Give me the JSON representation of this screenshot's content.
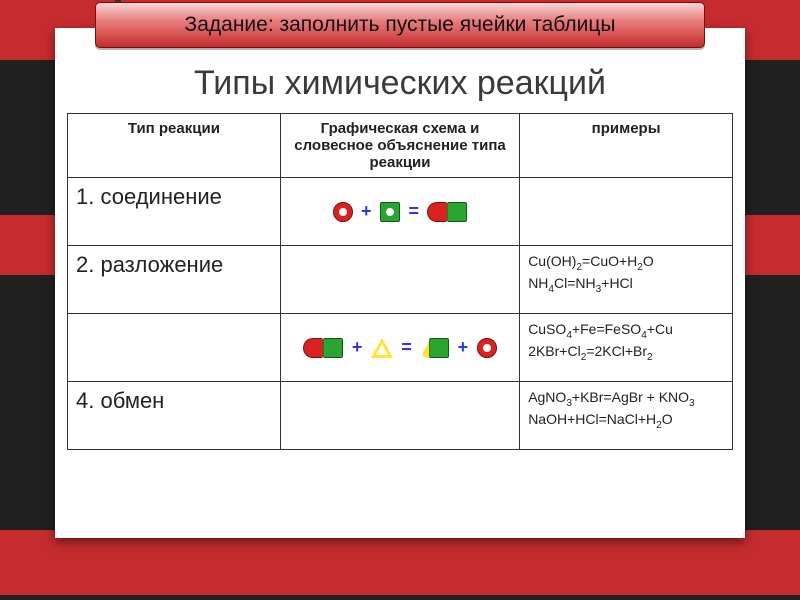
{
  "banner": "Задание: заполнить пустые ячейки таблицы",
  "title": "Типы химических реакций",
  "headers": {
    "col1": "Тип реакции",
    "col2": "Графическая схема и словесное объяснение типа реакции",
    "col3": "примеры"
  },
  "rows": {
    "r1": {
      "type": "1. соединение",
      "example": ""
    },
    "r2": {
      "type": "2. разложение",
      "example_html": "Cu(OH)<sub>2</sub>=CuO+H<sub>2</sub>O<br>NH<sub>4</sub>Cl=NH<sub>3</sub>+HCl"
    },
    "r3": {
      "type": "",
      "example_html": "CuSO<sub>4</sub>+Fe=FeSO<sub>4</sub>+Cu<br>2KBr+Cl<sub>2</sub>=2KCl+Br<sub>2</sub>"
    },
    "r4": {
      "type": "4. обмен",
      "example_html": "AgNO<sub>3</sub>+KBr=AgBr + KNO<sub>3</sub><br>NaOH+HCl=NaCl+H<sub>2</sub>O"
    }
  },
  "colors": {
    "red": "#d92321",
    "green": "#2aa534",
    "yellow": "#ffe532",
    "operator": "#2f2fff",
    "banner_grad_top": "#f7d7d7",
    "banner_grad_bottom": "#c62c2e",
    "stripe": "#c62c2e",
    "bg": "#202020"
  }
}
